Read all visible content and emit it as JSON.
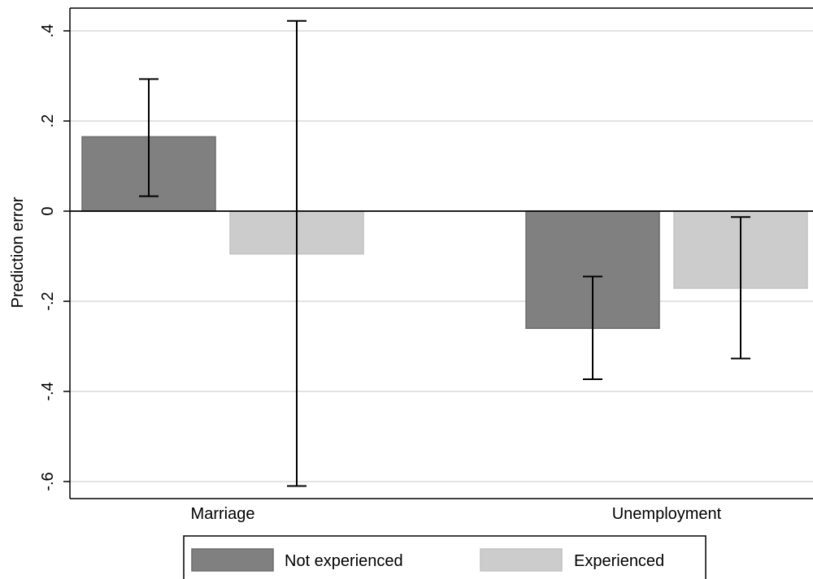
{
  "chart_data": {
    "type": "bar",
    "title": "",
    "xlabel": "",
    "ylabel": "Prediction error",
    "ylim": [
      -0.62,
      0.45
    ],
    "yticks": [
      {
        "value": 0.4,
        "label": ".4"
      },
      {
        "value": 0.2,
        "label": ".2"
      },
      {
        "value": 0,
        "label": "0"
      },
      {
        "value": -0.2,
        "label": "-.2"
      },
      {
        "value": -0.4,
        "label": "-.4"
      },
      {
        "value": -0.6,
        "label": "-.6"
      }
    ],
    "grid": true,
    "legend_position": "bottom",
    "categories": [
      "Marriage",
      "Unemployment"
    ],
    "series": [
      {
        "name": "Not experienced",
        "color": "#808080",
        "values": [
          0.165,
          -0.26
        ],
        "ci_low": [
          0.033,
          -0.373
        ],
        "ci_high": [
          0.293,
          -0.145
        ]
      },
      {
        "name": "Experienced",
        "color": "#cccccc",
        "values": [
          -0.095,
          -0.171
        ],
        "ci_low": [
          -0.61,
          -0.327
        ],
        "ci_high": [
          0.422,
          -0.013
        ]
      }
    ]
  }
}
